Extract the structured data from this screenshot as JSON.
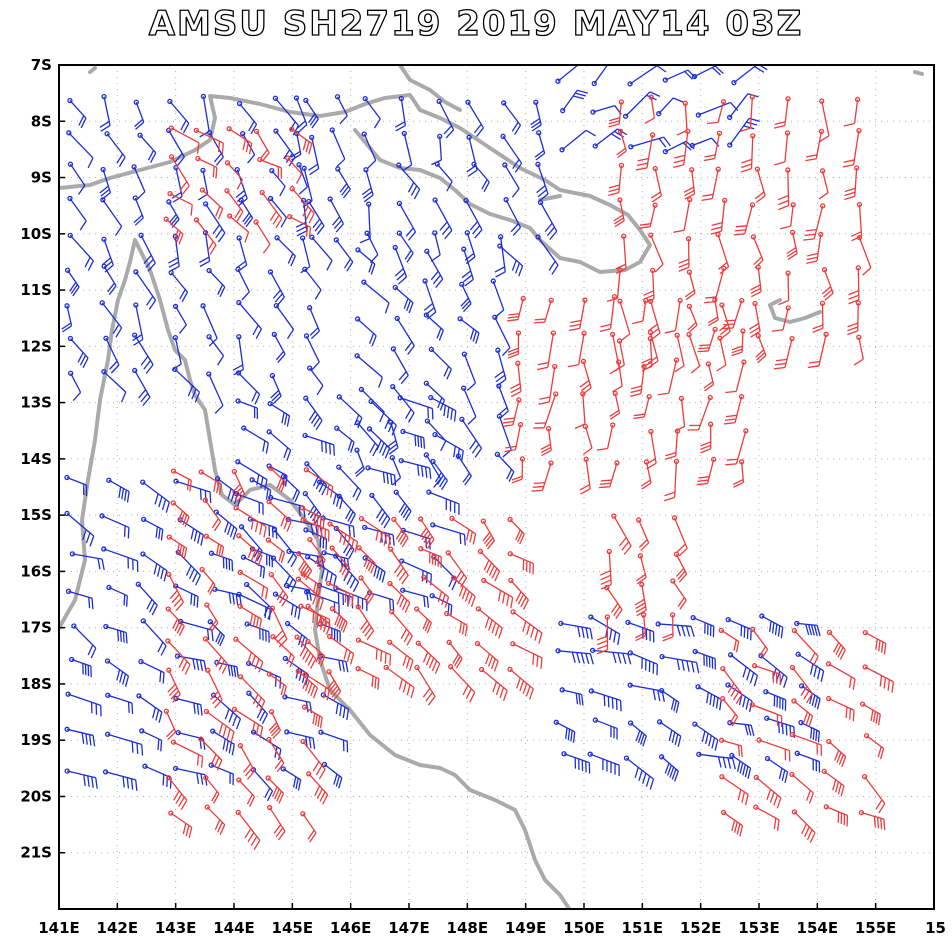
{
  "title": "AMSU SH2719 2019 MAY14 03Z",
  "map": {
    "lon_range": [
      141,
      156
    ],
    "lat_range": [
      -22,
      -7
    ],
    "x_ticks": [
      "141E",
      "142E",
      "143E",
      "144E",
      "145E",
      "146E",
      "147E",
      "148E",
      "149E",
      "150E",
      "151E",
      "152E",
      "153E",
      "154E",
      "155E",
      "15"
    ],
    "y_ticks": [
      "7S",
      "8S",
      "9S",
      "10S",
      "11S",
      "12S",
      "13S",
      "14S",
      "15S",
      "16S",
      "17S",
      "18S",
      "19S",
      "20S",
      "21S"
    ],
    "gridlines": "dotted",
    "coastline_color": "#aaaaaa",
    "series": [
      {
        "color": "#1c2ed6"
      },
      {
        "color": "#ee3b3b"
      }
    ]
  }
}
